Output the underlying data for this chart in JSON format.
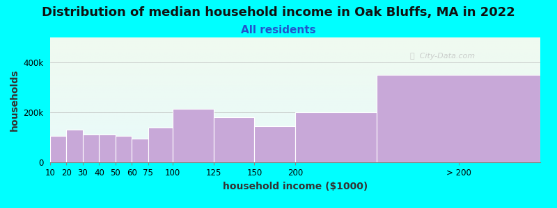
{
  "title": "Distribution of median household income in Oak Bluffs, MA in 2022",
  "subtitle": "All residents",
  "xlabel": "household income ($1000)",
  "ylabel": "households",
  "bg_color": "#00FFFF",
  "bar_color": "#C8A8D8",
  "bar_edge_color": "#FFFFFF",
  "categories": [
    "10",
    "20",
    "30",
    "40",
    "50",
    "60",
    "75",
    "100",
    "125",
    "150",
    "200",
    "> 200"
  ],
  "bin_lefts": [
    0,
    10,
    20,
    30,
    40,
    50,
    60,
    75,
    100,
    125,
    150,
    200
  ],
  "bin_widths": [
    10,
    10,
    10,
    10,
    10,
    10,
    15,
    25,
    25,
    25,
    50,
    100
  ],
  "values": [
    105000,
    130000,
    110000,
    110000,
    105000,
    95000,
    140000,
    215000,
    180000,
    145000,
    200000,
    350000
  ],
  "ylim": [
    0,
    500000
  ],
  "yticks": [
    0,
    200000,
    400000
  ],
  "ytick_labels": [
    "0",
    "200k",
    "400k"
  ],
  "watermark": "ⓘ  City-Data.com",
  "grad_top_color": "#F0FAF0",
  "grad_bottom_color": "#E8FAFA",
  "title_fontsize": 13,
  "subtitle_fontsize": 11,
  "axis_label_fontsize": 10
}
